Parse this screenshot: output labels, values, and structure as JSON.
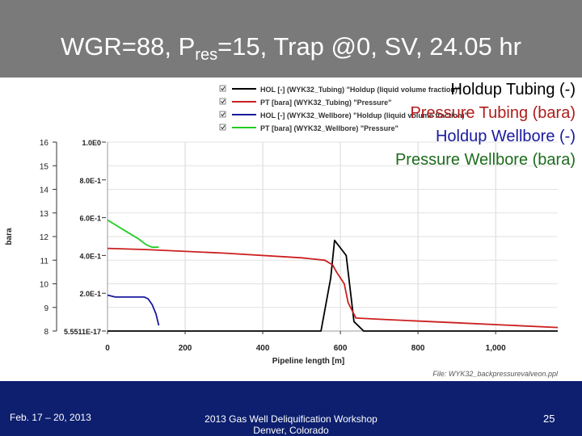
{
  "slide": {
    "title_main": "WGR=88, P",
    "title_sub": "res",
    "title_rest": "=15, Trap @0, SV, 24.05 hr",
    "footer_left": "Feb. 17 – 20, 2013",
    "footer_center_line1": "2013 Gas Well Deliquification Workshop",
    "footer_center_line2": "Denver, Colorado",
    "footer_right": "25",
    "file_label": "File: WYK32_backpressurevalveon.ppl",
    "colors": {
      "title_bg": "#7a7a7a",
      "footer_bg": "#0d1f6e",
      "black": "#000000",
      "red": "#cc1f1f",
      "blue": "#1a1a9e",
      "green": "#22cc22"
    }
  },
  "overlay_legend": [
    {
      "label": "Holdup Tubing (-)",
      "color": "#000000"
    },
    {
      "label": "Pressure Tubing (bara)",
      "color": "#b01c1c"
    },
    {
      "label": "Holdup Wellbore (-)",
      "color": "#1a1a9e"
    },
    {
      "label": "Pressure Wellbore (bara)",
      "color": "#1d6b1d"
    }
  ],
  "chart_data": {
    "type": "line",
    "xlabel": "Pipeline length [m]",
    "ylabel_left": "bara",
    "xlim": [
      0,
      1160
    ],
    "x_ticks": [
      0,
      200,
      400,
      600,
      800,
      1000
    ],
    "x_tick_labels": [
      "0",
      "200",
      "400",
      "600",
      "800",
      "1,000"
    ],
    "ylim_left": [
      8,
      16
    ],
    "y_ticks_left": [
      8,
      9,
      10,
      11,
      12,
      13,
      14,
      15,
      16
    ],
    "ylim_right": [
      0,
      1.0
    ],
    "y_ticks_right": [
      0,
      0.2,
      0.4,
      0.6,
      0.8,
      1.0
    ],
    "y_tick_labels_right": [
      "5.5511E-17",
      "2.0E-1",
      "4.0E-1",
      "6.0E-1",
      "8.0E-1",
      "1.0E0"
    ],
    "grid": true,
    "legend_position": "top",
    "series": [
      {
        "name": "HOL [-] (WYK32_Tubing) \"Holdup (liquid volume fraction)\"",
        "axis": "right",
        "color": "#000000",
        "x": [
          0,
          550,
          575,
          585,
          600,
          615,
          635,
          660,
          1160
        ],
        "y": [
          0.0,
          0.0,
          0.28,
          0.48,
          0.44,
          0.4,
          0.05,
          0.0,
          0.0
        ]
      },
      {
        "name": "PT [bara] (WYK32_Tubing) \"Pressure\"",
        "axis": "left",
        "color": "#cc1f1f",
        "x": [
          0,
          100,
          300,
          500,
          560,
          580,
          590,
          610,
          620,
          640,
          700,
          900,
          1160
        ],
        "y": [
          11.5,
          11.45,
          11.3,
          11.1,
          11.0,
          10.8,
          10.5,
          10.0,
          9.2,
          8.55,
          8.5,
          8.35,
          8.15
        ]
      },
      {
        "name": "HOL [-] (WYK32_Wellbore) \"Holdup (liquid volume fraction)\"",
        "axis": "right",
        "color": "#1a1a9e",
        "x": [
          0,
          20,
          60,
          95,
          105,
          115,
          125,
          132
        ],
        "y": [
          0.19,
          0.18,
          0.18,
          0.18,
          0.17,
          0.14,
          0.09,
          0.03
        ]
      },
      {
        "name": "PT [bara] (WYK32_Wellbore) \"Pressure\"",
        "axis": "left",
        "color": "#22cc22",
        "x": [
          0,
          20,
          50,
          80,
          100,
          115,
          132
        ],
        "y": [
          12.7,
          12.5,
          12.2,
          11.9,
          11.65,
          11.55,
          11.55
        ]
      }
    ]
  }
}
